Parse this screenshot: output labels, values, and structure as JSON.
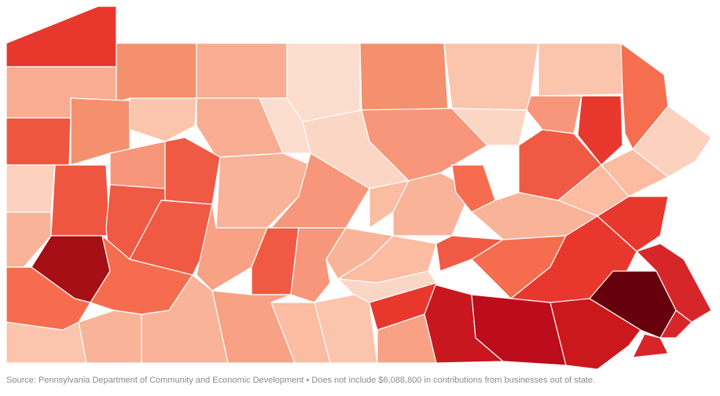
{
  "source_note": "Source: Pennsylvania Department of Community and Economic Development • Does not include $6,088,800 in contributions from businesses out of state."
}
